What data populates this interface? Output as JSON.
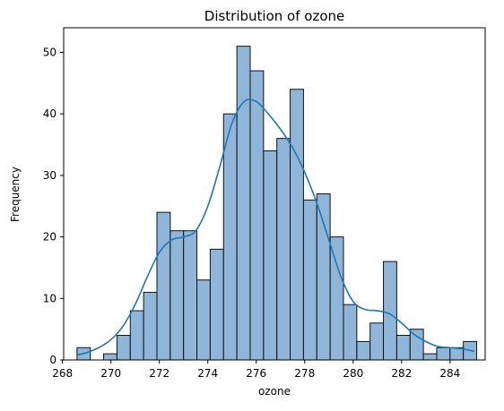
{
  "chart_data": {
    "type": "bar",
    "title": "Distribution of ozone",
    "xlabel": "ozone",
    "ylabel": "Frequency",
    "xlim": [
      268.05,
      285.45
    ],
    "ylim": [
      0,
      54
    ],
    "xticks": [
      268,
      270,
      272,
      274,
      276,
      278,
      280,
      282,
      284
    ],
    "yticks": [
      0,
      10,
      20,
      30,
      40,
      50
    ],
    "grid": false,
    "legend": "none",
    "bin_edges": [
      268.6,
      269.15,
      269.7,
      270.25,
      270.8,
      271.35,
      271.9,
      272.45,
      273.0,
      273.55,
      274.1,
      274.65,
      275.2,
      275.75,
      276.3,
      276.85,
      277.4,
      277.95,
      278.5,
      279.05,
      279.6,
      280.15,
      280.7,
      281.25,
      281.8,
      282.35,
      282.9,
      283.45,
      284.0,
      284.55,
      285.1
    ],
    "counts": [
      2,
      0,
      1,
      4,
      8,
      11,
      24,
      21,
      21,
      13,
      18,
      40,
      51,
      47,
      34,
      36,
      44,
      26,
      27,
      20,
      9,
      3,
      6,
      16,
      4,
      5,
      1,
      2,
      2,
      3
    ],
    "kde": {
      "x": [
        268.6,
        269.0,
        269.5,
        270.0,
        270.5,
        271.0,
        271.5,
        272.0,
        272.5,
        273.0,
        273.5,
        274.0,
        274.5,
        275.0,
        275.5,
        276.0,
        276.5,
        277.0,
        277.5,
        278.0,
        278.5,
        279.0,
        279.5,
        280.0,
        280.5,
        281.0,
        281.5,
        282.0,
        282.5,
        283.0,
        283.5,
        284.0,
        284.5,
        285.0
      ],
      "y": [
        0.8,
        1.2,
        2.0,
        3.3,
        5.5,
        9.0,
        13.5,
        17.5,
        19.5,
        20.0,
        21.0,
        25.0,
        31.5,
        38.5,
        42.0,
        42.0,
        40.0,
        37.5,
        34.5,
        30.5,
        25.5,
        19.5,
        13.5,
        9.5,
        8.2,
        8.0,
        7.5,
        6.0,
        4.2,
        3.0,
        2.2,
        2.0,
        1.8,
        1.4
      ]
    },
    "colors": {
      "bar_fill": "#8fb6d8",
      "bar_edge": "#111111",
      "kde_line": "#1f77b4",
      "axes": "#000000"
    }
  }
}
